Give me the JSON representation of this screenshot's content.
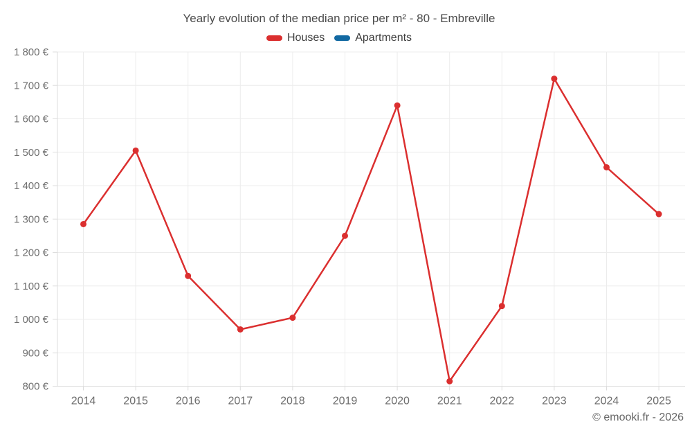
{
  "header": {
    "title": "Yearly evolution of the median price per m² - 80 - Embreville"
  },
  "legend": {
    "items": [
      {
        "label": "Houses",
        "color": "#db2f2f"
      },
      {
        "label": "Apartments",
        "color": "#1269a2"
      }
    ]
  },
  "footer": {
    "credit": "© emooki.fr - 2026"
  },
  "chart_data": {
    "type": "line",
    "title": "Yearly evolution of the median price per m² - 80 - Embreville",
    "categories": [
      "2014",
      "2015",
      "2016",
      "2017",
      "2018",
      "2019",
      "2020",
      "2021",
      "2022",
      "2023",
      "2024",
      "2025"
    ],
    "series": [
      {
        "name": "Houses",
        "color": "#db2f2f",
        "values": [
          1285,
          1505,
          1130,
          970,
          1005,
          1250,
          1640,
          815,
          1040,
          1720,
          1455,
          1315
        ]
      },
      {
        "name": "Apartments",
        "color": "#1269a2",
        "values": []
      }
    ],
    "xlabel": "",
    "ylabel": "",
    "ylim": [
      800,
      1800
    ],
    "y_tick_step": 100,
    "y_tick_labels": [
      "800 €",
      "900 €",
      "1 000 €",
      "1 100 €",
      "1 200 €",
      "1 300 €",
      "1 400 €",
      "1 500 €",
      "1 600 €",
      "1 700 €",
      "1 800 €"
    ],
    "grid": true,
    "legend_position": "top"
  },
  "colors": {
    "grid": "#ececec",
    "axis": "#dddddd",
    "tick_text": "#6e6e6e",
    "title_text": "#4b4b4b",
    "legend_text": "#3d3d3d",
    "background": "#ffffff"
  }
}
